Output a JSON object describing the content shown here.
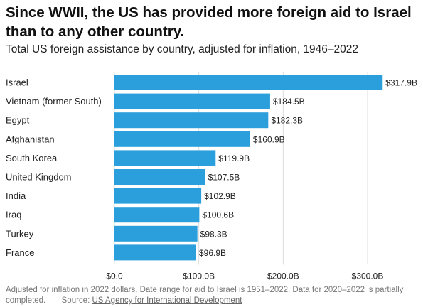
{
  "title": "Since WWII, the US has provided more foreign aid to Israel than to any other country.",
  "subtitle": "Total US foreign assistance by country, adjusted for inflation, 1946–2022",
  "chart_data": {
    "type": "bar",
    "orientation": "horizontal",
    "categories": [
      "Israel",
      "Vietnam (former South)",
      "Egypt",
      "Afghanistan",
      "South Korea",
      "United Kingdom",
      "India",
      "Iraq",
      "Turkey",
      "France"
    ],
    "values": [
      317.9,
      184.5,
      182.3,
      160.9,
      119.9,
      107.5,
      102.9,
      100.6,
      98.3,
      96.9
    ],
    "value_labels": [
      "$317.9B",
      "$184.5B",
      "$182.3B",
      "$160.9B",
      "$119.9B",
      "$107.5B",
      "$102.9B",
      "$100.6B",
      "$98.3B",
      "$96.9B"
    ],
    "x_ticks": [
      0,
      100,
      200,
      300
    ],
    "x_tick_labels": [
      "$0.0",
      "$100.0B",
      "$200.0B",
      "$300.0B"
    ],
    "xlim": [
      0,
      320
    ],
    "bar_color": "#2a9fdb",
    "grid": "vertical",
    "xlabel": "",
    "ylabel": ""
  },
  "footnote": {
    "text": "Adjusted for inflation in 2022 dollars. Date range for aid to Israel is 1951–2022. Data for 2020–2022 is partially completed.",
    "source_prefix": "Source: ",
    "source_link": "US Agency for International Development"
  }
}
